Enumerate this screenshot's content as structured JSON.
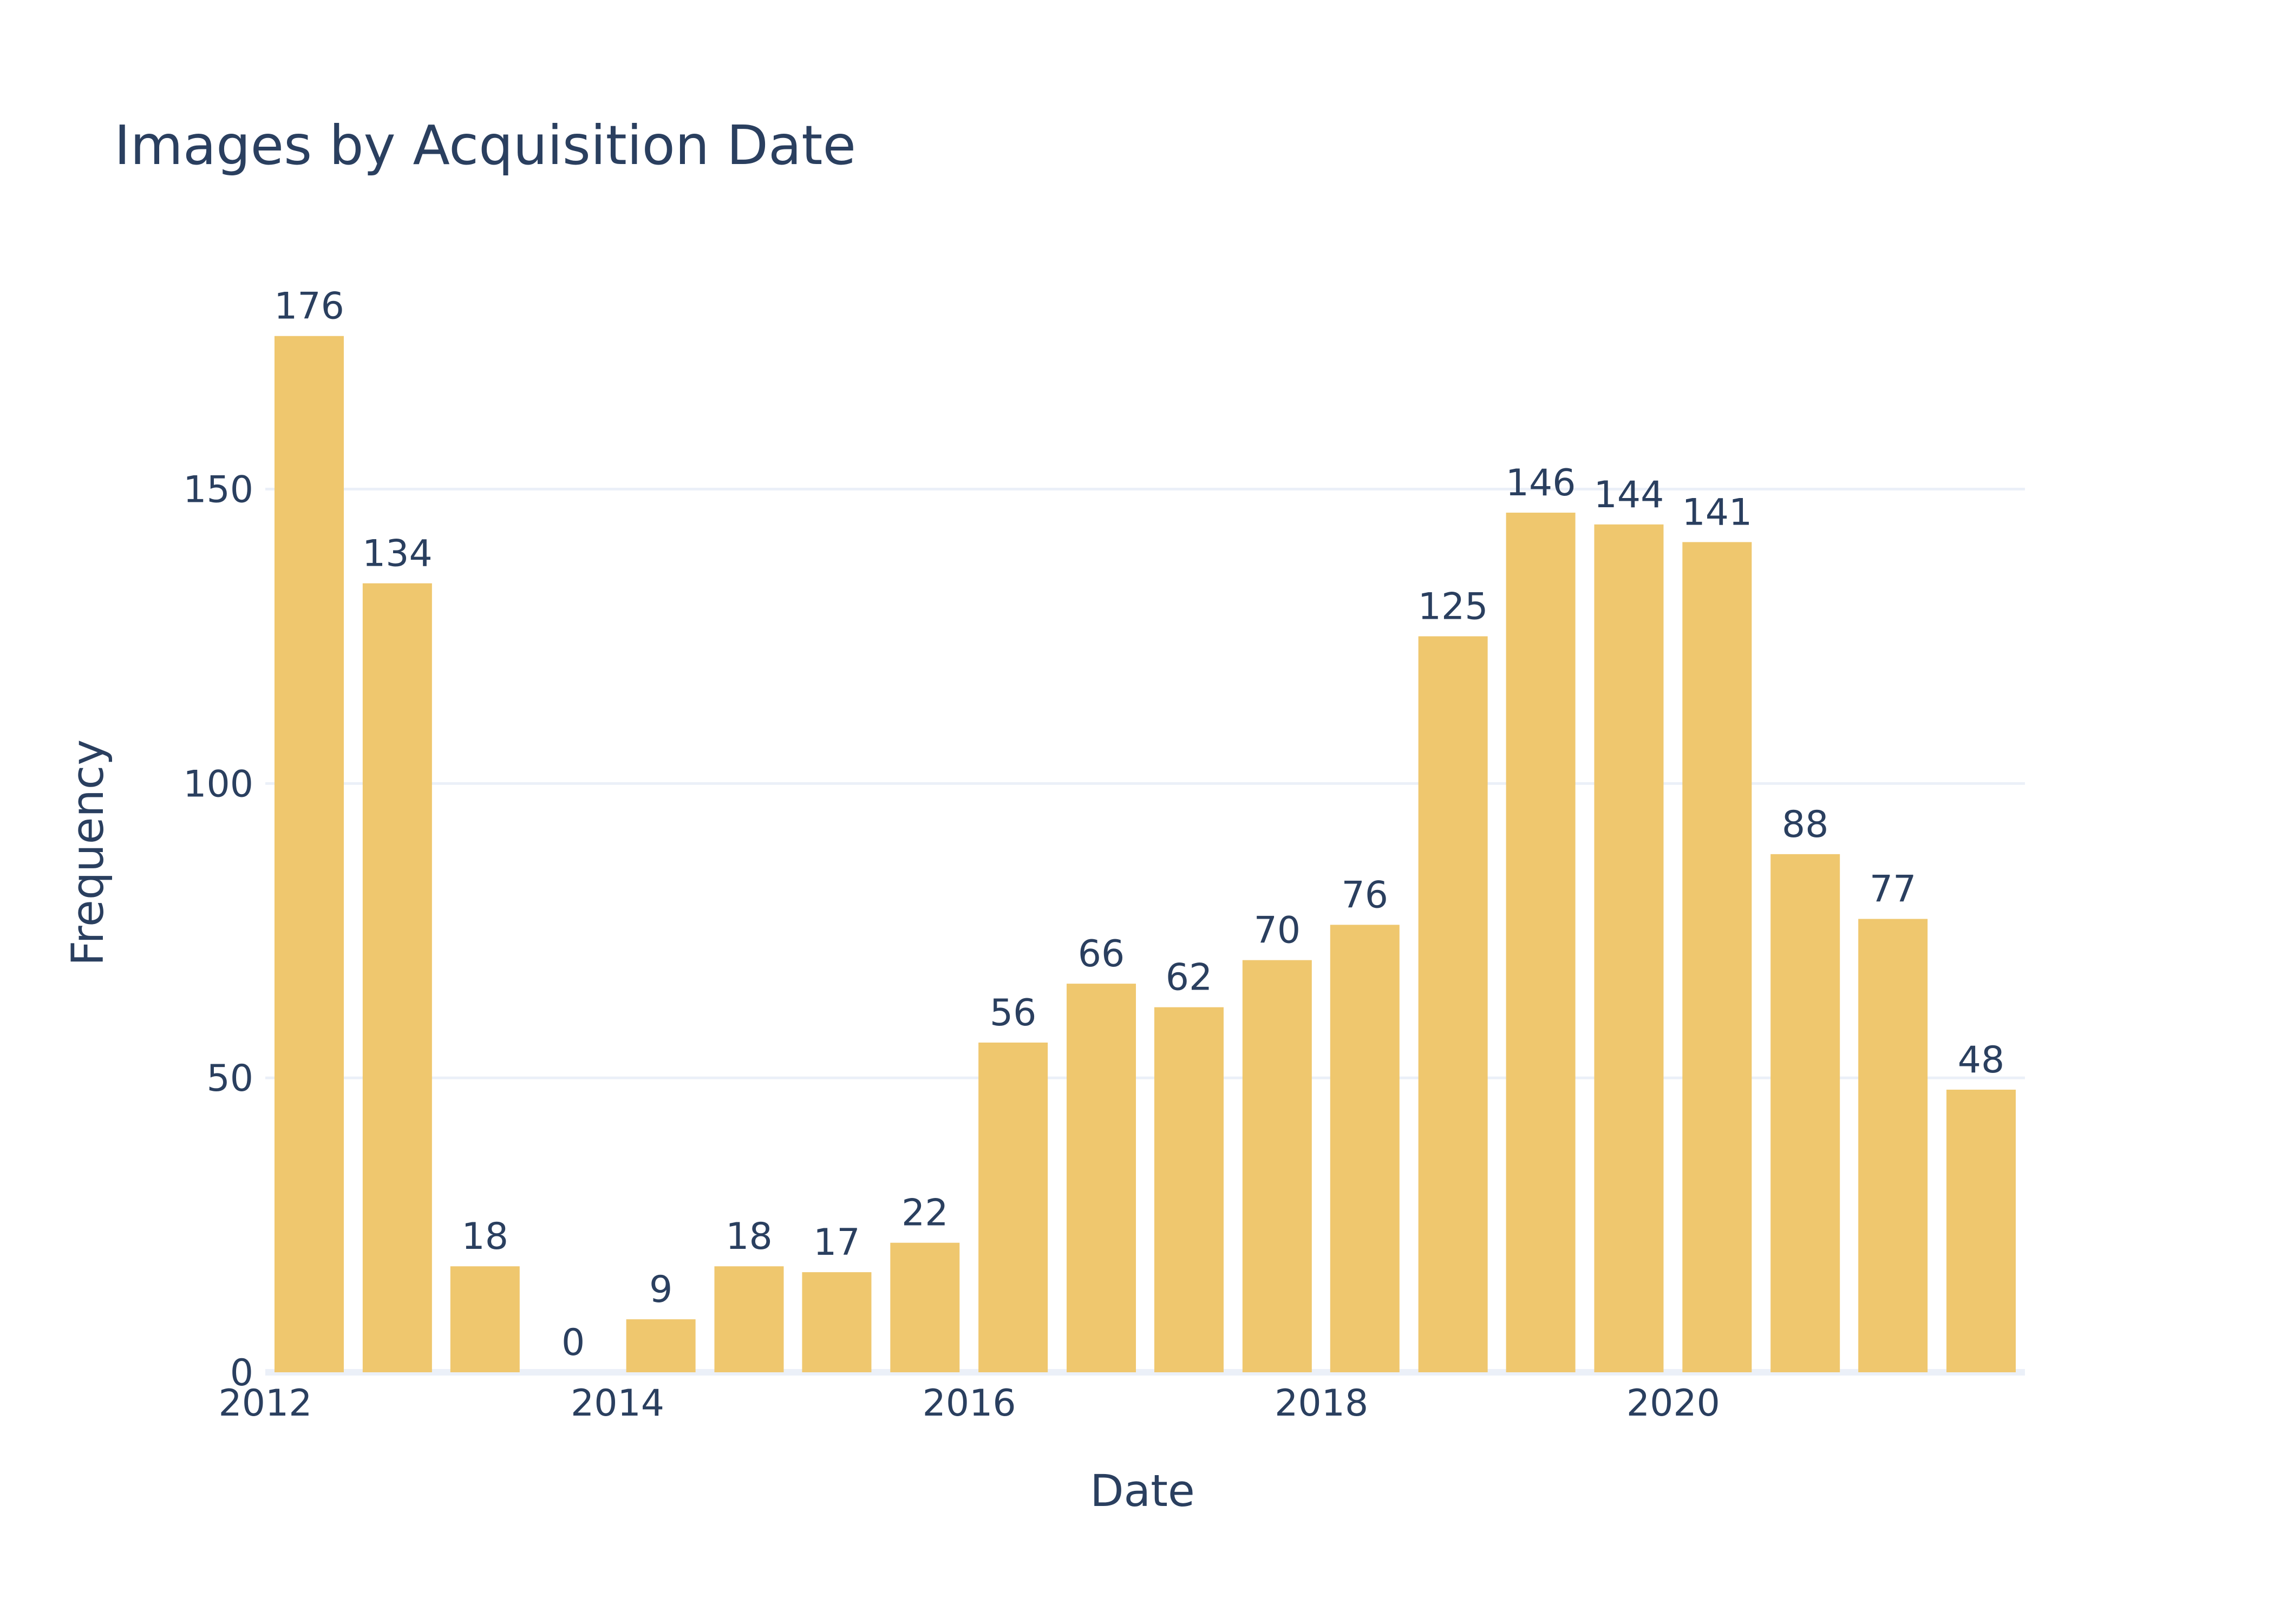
{
  "chart_data": {
    "type": "bar",
    "title": "Images by Acquisition Date",
    "xlabel": "Date",
    "ylabel": "Frequency",
    "x": [
      "2012-04-01",
      "2012-10-01",
      "2013-04-01",
      "2013-10-01",
      "2014-04-01",
      "2014-10-01",
      "2015-04-01",
      "2015-10-01",
      "2016-04-01",
      "2016-10-01",
      "2017-04-01",
      "2017-10-01",
      "2018-04-01",
      "2018-10-01",
      "2019-04-01",
      "2019-10-01",
      "2020-04-01",
      "2020-10-01",
      "2021-04-01",
      "2021-10-01"
    ],
    "values": [
      176,
      134,
      18,
      0,
      9,
      18,
      17,
      22,
      56,
      66,
      62,
      70,
      76,
      125,
      146,
      144,
      141,
      88,
      77,
      48
    ],
    "xlim": [
      "2012-01-01",
      "2021-12-31"
    ],
    "ylim": [
      0,
      185.26
    ],
    "xticks": [
      {
        "label": "2012",
        "date": "2012-01-01"
      },
      {
        "label": "2014",
        "date": "2014-01-01"
      },
      {
        "label": "2016",
        "date": "2016-01-01"
      },
      {
        "label": "2018",
        "date": "2018-01-01"
      },
      {
        "label": "2020",
        "date": "2020-01-01"
      }
    ],
    "yticks": [
      0,
      50,
      100,
      150
    ],
    "grid": true,
    "colors": {
      "bar": "#efc76e",
      "text": "#2a3f5f",
      "grid": "#ebf0f8"
    }
  }
}
